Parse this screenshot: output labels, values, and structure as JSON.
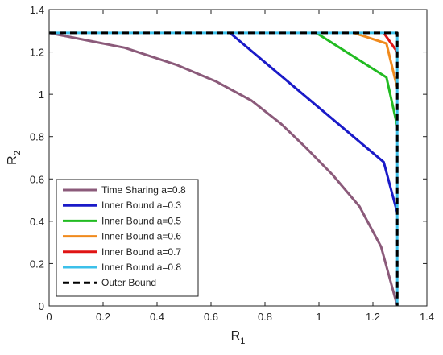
{
  "chart_data": {
    "type": "line",
    "xlabel": "R",
    "xlabel_sub": "1",
    "ylabel": "R",
    "ylabel_sub": "2",
    "xlim": [
      0,
      1.4
    ],
    "ylim": [
      0,
      1.4
    ],
    "xticks": [
      "0",
      "0.2",
      "0.4",
      "0.6",
      "0.8",
      "1",
      "1.2",
      "1.4"
    ],
    "yticks": [
      "0",
      "0.2",
      "0.4",
      "0.6",
      "0.8",
      "1",
      "1.2",
      "1.4"
    ],
    "grid": false,
    "legend_position": "bottom-left",
    "series": [
      {
        "name": "Time Sharing a=0.8",
        "color": "#8b5a7a",
        "dash": false,
        "points": [
          [
            0,
            1.29
          ],
          [
            0.28,
            1.22
          ],
          [
            0.47,
            1.14
          ],
          [
            0.62,
            1.06
          ],
          [
            0.75,
            0.97
          ],
          [
            0.86,
            0.86
          ],
          [
            0.95,
            0.75
          ],
          [
            1.05,
            0.62
          ],
          [
            1.15,
            0.47
          ],
          [
            1.23,
            0.28
          ],
          [
            1.29,
            0
          ]
        ]
      },
      {
        "name": "Inner Bound a=0.3",
        "color": "#1a1ac8",
        "dash": false,
        "points": [
          [
            0.67,
            1.29
          ],
          [
            1.24,
            0.68
          ],
          [
            1.29,
            0.44
          ]
        ]
      },
      {
        "name": "Inner Bound a=0.5",
        "color": "#22bb22",
        "dash": false,
        "points": [
          [
            0.99,
            1.29
          ],
          [
            1.25,
            1.08
          ],
          [
            1.29,
            0.85
          ]
        ]
      },
      {
        "name": "Inner Bound a=0.6",
        "color": "#f08a1c",
        "dash": false,
        "points": [
          [
            1.13,
            1.29
          ],
          [
            1.25,
            1.24
          ],
          [
            1.29,
            1.03
          ]
        ]
      },
      {
        "name": "Inner Bound a=0.7",
        "color": "#e01414",
        "dash": false,
        "points": [
          [
            1.24,
            1.29
          ],
          [
            1.29,
            1.2
          ]
        ]
      },
      {
        "name": "Inner Bound a=0.8",
        "color": "#3cc0ea",
        "dash": false,
        "points": [
          [
            0,
            1.29
          ],
          [
            1.29,
            1.29
          ],
          [
            1.29,
            0
          ]
        ]
      },
      {
        "name": "Outer Bound",
        "color": "#000000",
        "dash": true,
        "points": [
          [
            0,
            1.29
          ],
          [
            1.29,
            1.29
          ],
          [
            1.29,
            0
          ]
        ]
      }
    ]
  }
}
